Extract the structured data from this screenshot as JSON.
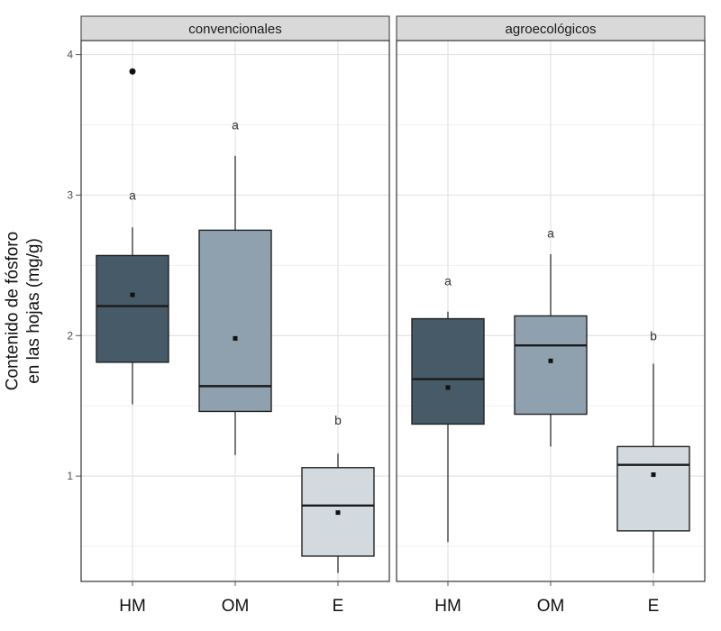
{
  "chart_data": {
    "type": "box",
    "ylabel_lines": [
      "Contenido de fósforo",
      "en las hojas (mg/g)"
    ],
    "ylim": [
      0.25,
      4.1
    ],
    "yticks": [
      1,
      2,
      3,
      4
    ],
    "grid": true,
    "categories": [
      "HM",
      "OM",
      "E"
    ],
    "colors": {
      "HM": "#465a68",
      "OM": "#8fa1ae",
      "E": "#d2d9df"
    },
    "panels": [
      {
        "name": "convencionales",
        "boxes": [
          {
            "category": "HM",
            "whisker_low": 1.51,
            "q1": 1.81,
            "median": 2.21,
            "q3": 2.57,
            "whisker_high": 2.77,
            "mean": 2.29,
            "outliers": [
              3.88
            ],
            "letter": "a",
            "letter_y": 3.0
          },
          {
            "category": "OM",
            "whisker_low": 1.15,
            "q1": 1.46,
            "median": 1.64,
            "q3": 2.75,
            "whisker_high": 3.28,
            "mean": 1.98,
            "outliers": [],
            "letter": "a",
            "letter_y": 3.5
          },
          {
            "category": "E",
            "whisker_low": 0.31,
            "q1": 0.43,
            "median": 0.79,
            "q3": 1.06,
            "whisker_high": 1.16,
            "mean": 0.74,
            "outliers": [],
            "letter": "b",
            "letter_y": 1.4
          }
        ]
      },
      {
        "name": "agroecológicos",
        "boxes": [
          {
            "category": "HM",
            "whisker_low": 0.53,
            "q1": 1.37,
            "median": 1.69,
            "q3": 2.12,
            "whisker_high": 2.17,
            "mean": 1.63,
            "outliers": [],
            "letter": "a",
            "letter_y": 2.39
          },
          {
            "category": "OM",
            "whisker_low": 1.21,
            "q1": 1.44,
            "median": 1.93,
            "q3": 2.14,
            "whisker_high": 2.58,
            "mean": 1.82,
            "outliers": [],
            "letter": "a",
            "letter_y": 2.73
          },
          {
            "category": "E",
            "whisker_low": 0.31,
            "q1": 0.61,
            "median": 1.08,
            "q3": 1.21,
            "whisker_high": 1.8,
            "mean": 1.01,
            "outliers": [],
            "letter": "b",
            "letter_y": 2.0
          }
        ]
      }
    ]
  }
}
